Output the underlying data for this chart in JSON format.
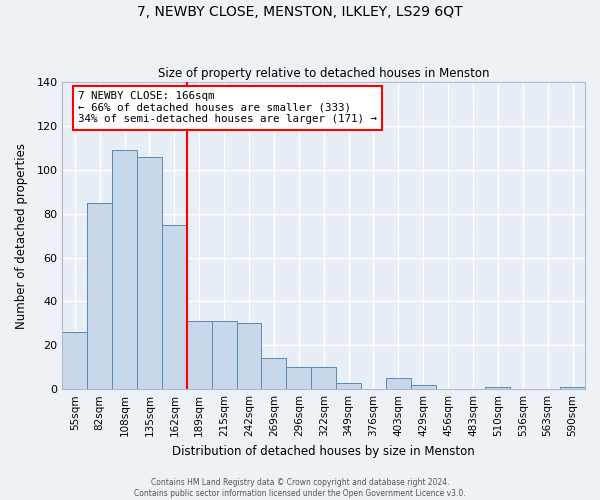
{
  "title": "7, NEWBY CLOSE, MENSTON, ILKLEY, LS29 6QT",
  "subtitle": "Size of property relative to detached houses in Menston",
  "xlabel": "Distribution of detached houses by size in Menston",
  "ylabel": "Number of detached properties",
  "bar_color": "#c8d8ea",
  "bar_edge_color": "#5a8ab0",
  "background_color": "#e8eef5",
  "grid_color": "#ffffff",
  "fig_background": "#eef2f7",
  "categories": [
    "55sqm",
    "82sqm",
    "108sqm",
    "135sqm",
    "162sqm",
    "189sqm",
    "215sqm",
    "242sqm",
    "269sqm",
    "296sqm",
    "322sqm",
    "349sqm",
    "376sqm",
    "403sqm",
    "429sqm",
    "456sqm",
    "483sqm",
    "510sqm",
    "536sqm",
    "563sqm",
    "590sqm"
  ],
  "values": [
    26,
    85,
    109,
    106,
    75,
    31,
    31,
    30,
    14,
    10,
    10,
    3,
    0,
    5,
    2,
    0,
    0,
    1,
    0,
    0,
    1
  ],
  "marker_idx": 4,
  "marker_label_line1": "7 NEWBY CLOSE: 166sqm",
  "marker_label_line2": "← 66% of detached houses are smaller (333)",
  "marker_label_line3": "34% of semi-detached houses are larger (171) →",
  "ylim": [
    0,
    140
  ],
  "yticks": [
    0,
    20,
    40,
    60,
    80,
    100,
    120,
    140
  ],
  "footer_line1": "Contains HM Land Registry data © Crown copyright and database right 2024.",
  "footer_line2": "Contains public sector information licensed under the Open Government Licence v3.0."
}
